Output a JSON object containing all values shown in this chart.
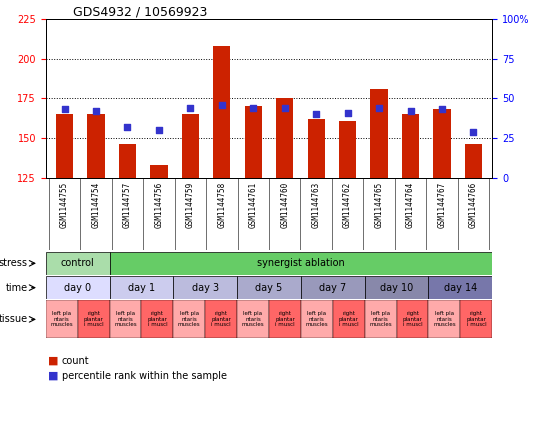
{
  "title": "GDS4932 / 10569923",
  "samples": [
    "GSM1144755",
    "GSM1144754",
    "GSM1144757",
    "GSM1144756",
    "GSM1144759",
    "GSM1144758",
    "GSM1144761",
    "GSM1144760",
    "GSM1144763",
    "GSM1144762",
    "GSM1144765",
    "GSM1144764",
    "GSM1144767",
    "GSM1144766"
  ],
  "counts": [
    165,
    165,
    146,
    133,
    165,
    208,
    170,
    175,
    162,
    161,
    181,
    165,
    168,
    146
  ],
  "percentiles": [
    43,
    42,
    32,
    30,
    44,
    46,
    44,
    44,
    40,
    41,
    44,
    42,
    43,
    29
  ],
  "ylim_left": [
    125,
    225
  ],
  "ylim_right": [
    0,
    100
  ],
  "yticks_left": [
    125,
    150,
    175,
    200,
    225
  ],
  "yticks_right": [
    0,
    25,
    50,
    75,
    100
  ],
  "bar_color": "#cc2200",
  "dot_color": "#3333cc",
  "background_color": "#ffffff",
  "plot_bg_color": "#ffffff",
  "dot_size": 18,
  "bar_width": 0.55,
  "stress_control_color": "#aaddaa",
  "stress_ablation_color": "#66cc66",
  "time_colors": [
    "#ddddff",
    "#ccccee",
    "#bbbbdd",
    "#aaaacc",
    "#9999bb",
    "#8888aa",
    "#7777aa"
  ],
  "time_labels": [
    "day 0",
    "day 1",
    "day 3",
    "day 5",
    "day 7",
    "day 10",
    "day 14"
  ],
  "tissue_left_color": "#ffaaaa",
  "tissue_right_color": "#ff6666",
  "grid_dotted_color": "#000000",
  "legend_count_color": "#cc2200",
  "legend_pct_color": "#3333cc",
  "label_fontsize": 7,
  "tick_fontsize": 7,
  "sample_fontsize": 5.5,
  "tissue_fontsize": 4.0,
  "title_fontsize": 9
}
